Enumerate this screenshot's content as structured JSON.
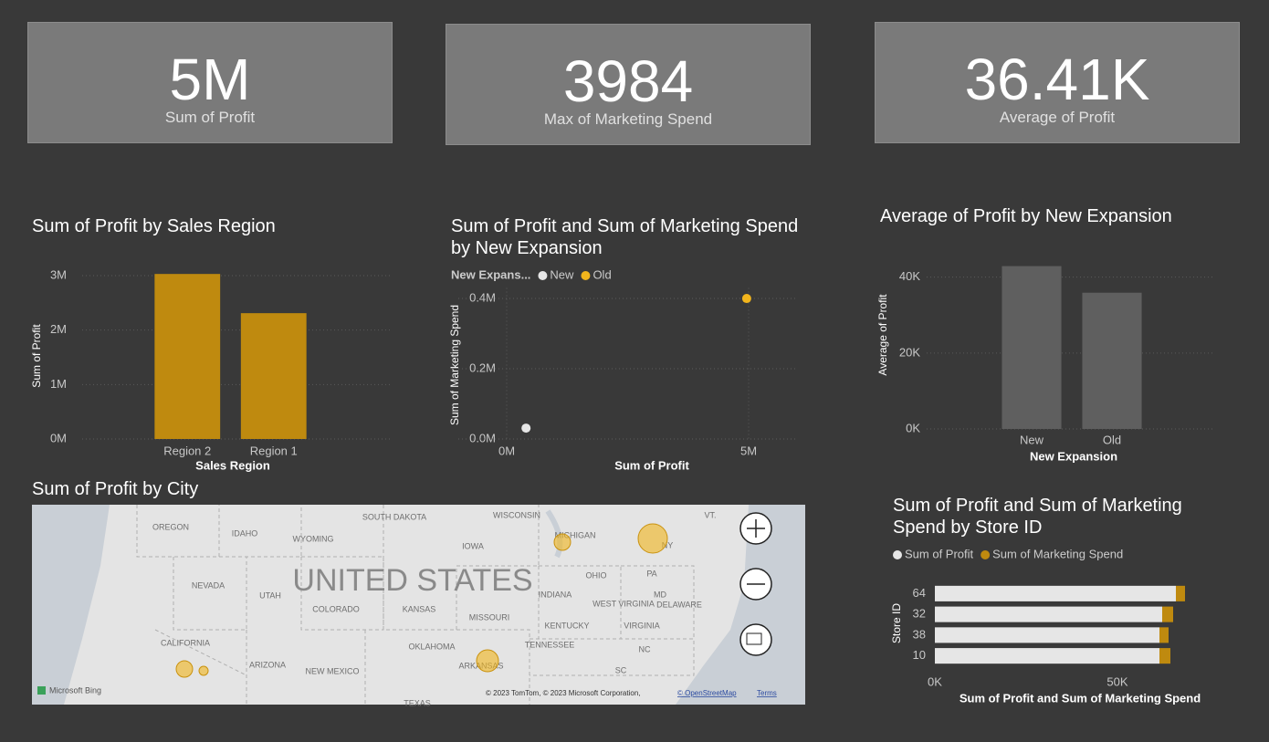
{
  "cards": [
    {
      "value": "5M",
      "label": "Sum of Profit"
    },
    {
      "value": "3984",
      "label": "Max of Marketing Spend"
    },
    {
      "value": "36.41K",
      "label": "Average of Profit"
    }
  ],
  "chart_data": [
    {
      "type": "bar",
      "title": "Sum of Profit by Sales Region",
      "x_label": "Sales Region",
      "y_label": "Sum of Profit",
      "categories": [
        "Region 2",
        "Region 1"
      ],
      "values": [
        3030000,
        2310000
      ],
      "color": "#bf8a0f",
      "ylim": [
        0,
        3100000
      ],
      "yticks": [
        {
          "value": 0,
          "label": "0M"
        },
        {
          "value": 1000000,
          "label": "1M"
        },
        {
          "value": 2000000,
          "label": "2M"
        },
        {
          "value": 3000000,
          "label": "3M"
        }
      ],
      "grid": true
    },
    {
      "type": "scatter",
      "title": "Sum of Profit and Sum of Marketing Spend by New Expansion",
      "x_label": "Sum of Profit",
      "y_label": "Sum of Marketing Spend",
      "legend_title": "New Expans...",
      "series": [
        {
          "name": "New",
          "color": "#e6e6e6",
          "x": [
            400000
          ],
          "values": [
            31000
          ]
        },
        {
          "name": "Old",
          "color": "#f2b51c",
          "x": [
            4960000
          ],
          "values": [
            400000
          ]
        }
      ],
      "xlim": [
        -1000000,
        6000000
      ],
      "xticks": [
        {
          "value": 0,
          "label": "0M"
        },
        {
          "value": 5000000,
          "label": "5M"
        }
      ],
      "ylim": [
        0,
        430000
      ],
      "yticks": [
        {
          "value": 0,
          "label": "0.0M"
        },
        {
          "value": 200000,
          "label": "0.2M"
        },
        {
          "value": 400000,
          "label": "0.4M"
        }
      ],
      "grid": true
    },
    {
      "type": "bar",
      "title": "Average of Profit by New Expansion",
      "x_label": "New Expansion",
      "y_label": "Average of Profit",
      "categories": [
        "New",
        "Old"
      ],
      "values": [
        42900,
        35900
      ],
      "color": "#5f5f5f",
      "ylim": [
        0,
        44000
      ],
      "yticks": [
        {
          "value": 0,
          "label": "0K"
        },
        {
          "value": 20000,
          "label": "20K"
        },
        {
          "value": 40000,
          "label": "40K"
        }
      ],
      "grid": true
    },
    {
      "type": "map",
      "title": "Sum of Profit by City",
      "labels": [
        "OREGON",
        "IDAHO",
        "WYOMING",
        "SOUTH DAKOTA",
        "WISCONSIN",
        "MICHIGAN",
        "IOWA",
        "NY",
        "VT.",
        "NEVADA",
        "UTAH",
        "COLORADO",
        "KANSAS",
        "MISSOURI",
        "INDIANA",
        "OHIO",
        "PA",
        "MD",
        "DELAWARE",
        "WEST VIRGINIA",
        "VIRGINIA",
        "KENTUCKY",
        "TENNESSEE",
        "CALIFORNIA",
        "ARIZONA",
        "NEW MEXICO",
        "OKLAHOMA",
        "ARKANSAS",
        "NC",
        "SC",
        "TEXAS",
        "UNITED STATES"
      ],
      "logo": "Microsoft Bing",
      "attribution": "© 2023 TomTom, © 2023 Microsoft Corporation,",
      "links": [
        "© OpenStreetMap",
        "Terms"
      ]
    },
    {
      "type": "bar",
      "horizontal": true,
      "stacked": true,
      "title": "Sum of Profit and Sum of Marketing Spend by Store ID",
      "x_label": "Sum of Profit and Sum of Marketing Spend",
      "y_label": "Store ID",
      "categories": [
        "64",
        "32",
        "38",
        "10"
      ],
      "series": [
        {
          "name": "Sum of Profit",
          "color": "#e6e6e6",
          "values": [
            66000,
            62250,
            61500,
            61500
          ]
        },
        {
          "name": "Sum of Marketing Spend",
          "color": "#bf8a0f",
          "values": [
            2500,
            3000,
            2500,
            3000
          ]
        }
      ],
      "xlim": [
        0,
        76000
      ],
      "xticks": [
        {
          "value": 0,
          "label": "0K"
        },
        {
          "value": 50000,
          "label": "50K"
        }
      ],
      "grid": false
    }
  ]
}
